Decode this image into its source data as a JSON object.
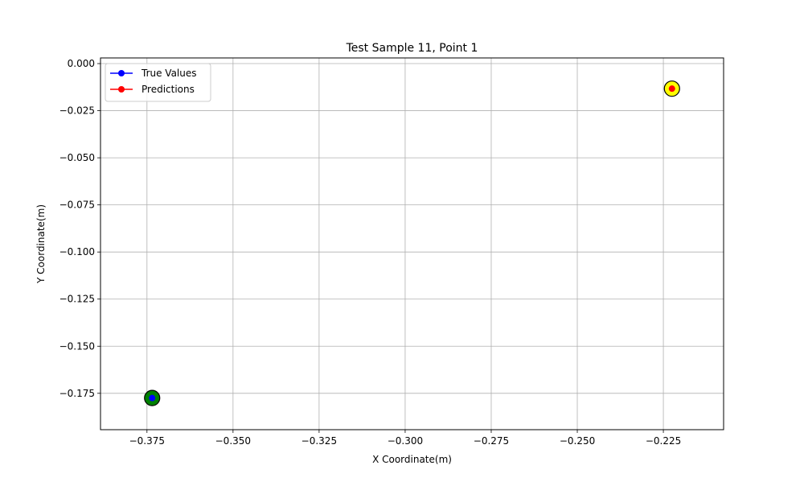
{
  "chart_data": {
    "type": "scatter",
    "title": "Test Sample 11, Point 1",
    "xlabel": "X Coordinate(m)",
    "ylabel": "Y Coordinate(m)",
    "xlim": [
      -0.3885,
      -0.2075
    ],
    "ylim": [
      -0.1943,
      0.003
    ],
    "xticks": [
      -0.375,
      -0.35,
      -0.325,
      -0.3,
      -0.275,
      -0.25,
      -0.225
    ],
    "xtick_labels": [
      "−0.375",
      "−0.350",
      "−0.325",
      "−0.300",
      "−0.275",
      "−0.250",
      "−0.225"
    ],
    "yticks": [
      0.0,
      -0.025,
      -0.05,
      -0.075,
      -0.1,
      -0.125,
      -0.15,
      -0.175
    ],
    "ytick_labels": [
      "0.000",
      "−0.025",
      "−0.050",
      "−0.075",
      "−0.100",
      "−0.125",
      "−0.150",
      "−0.175"
    ],
    "grid": true,
    "legend_position": "upper-left",
    "series": [
      {
        "name": "True Values",
        "color": "#0000ff",
        "marker": "circle",
        "x": [
          -0.3735
        ],
        "y": [
          -0.1775
        ]
      },
      {
        "name": "Predictions",
        "color": "#ff0000",
        "marker": "circle",
        "x": [
          -0.2225
        ],
        "y": [
          -0.0133
        ]
      }
    ],
    "highlights": [
      {
        "x": -0.3735,
        "y": -0.1775,
        "fill": "#008000",
        "edge": "#000000"
      },
      {
        "x": -0.2225,
        "y": -0.0133,
        "fill": "#ffff00",
        "edge": "#000000"
      }
    ]
  }
}
